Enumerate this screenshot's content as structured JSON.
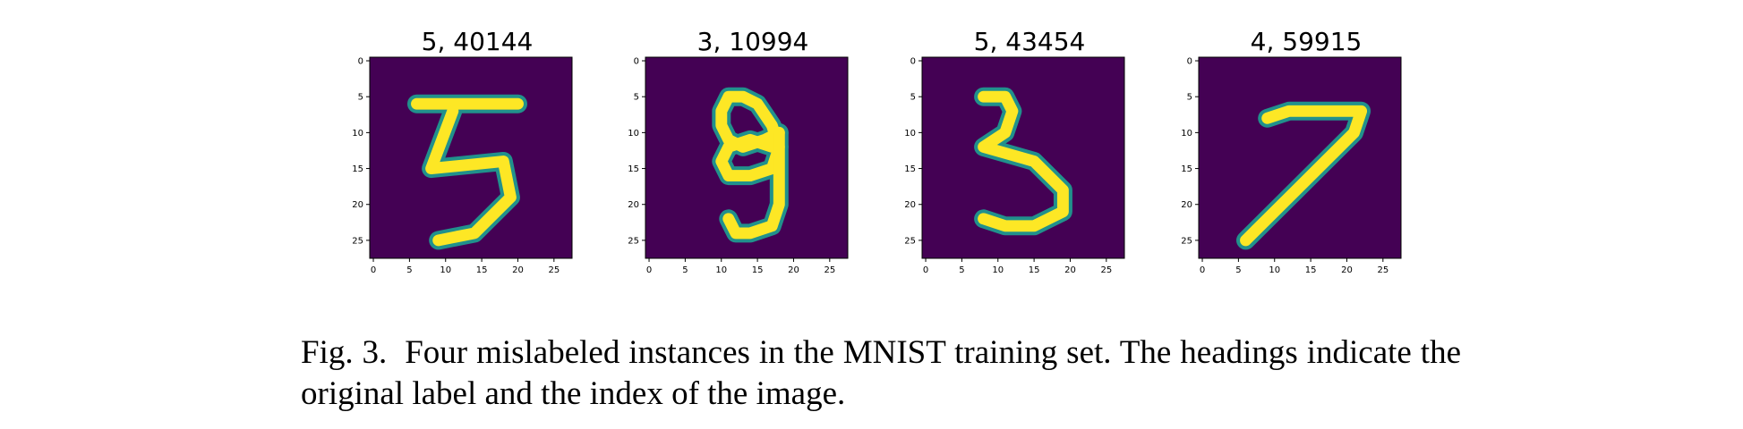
{
  "panels": [
    {
      "title": "5, 40144",
      "strokes": [
        [
          [
            6,
            6
          ],
          [
            20,
            6
          ]
        ],
        [
          [
            11,
            7
          ],
          [
            8,
            15
          ],
          [
            18,
            14
          ],
          [
            19,
            19
          ],
          [
            14,
            24
          ],
          [
            9,
            25
          ]
        ]
      ]
    },
    {
      "title": "3, 10994",
      "strokes": [
        [
          [
            17,
            12
          ],
          [
            14,
            11
          ],
          [
            11,
            12
          ],
          [
            10,
            14
          ],
          [
            11,
            16
          ],
          [
            14,
            16
          ],
          [
            17,
            15
          ],
          [
            18,
            12
          ],
          [
            17,
            9
          ],
          [
            15,
            6
          ],
          [
            13,
            5
          ],
          [
            11,
            5
          ],
          [
            10,
            7
          ],
          [
            10,
            9
          ],
          [
            11,
            11
          ],
          [
            13,
            12
          ],
          [
            16,
            11
          ],
          [
            18,
            10
          ]
        ],
        [
          [
            18,
            10
          ],
          [
            18,
            20
          ],
          [
            17,
            23
          ],
          [
            14,
            24
          ],
          [
            12,
            24
          ],
          [
            11,
            22
          ]
        ]
      ]
    },
    {
      "title": "5, 43454",
      "strokes": [
        [
          [
            8,
            5
          ],
          [
            11,
            5
          ],
          [
            12,
            7
          ],
          [
            11,
            10
          ],
          [
            8,
            12
          ],
          [
            15,
            14
          ],
          [
            19,
            18
          ],
          [
            19,
            21
          ],
          [
            15,
            23
          ],
          [
            11,
            23
          ],
          [
            8,
            22
          ]
        ]
      ]
    },
    {
      "title": "4, 59915",
      "strokes": [
        [
          [
            9,
            8
          ],
          [
            12,
            7
          ],
          [
            22,
            7
          ],
          [
            21,
            10
          ],
          [
            17,
            14
          ],
          [
            13,
            18
          ],
          [
            9,
            22
          ],
          [
            6,
            25
          ]
        ]
      ]
    }
  ],
  "axis": {
    "xticks": [
      "0",
      "5",
      "10",
      "15",
      "20",
      "25"
    ],
    "yticks": [
      "0",
      "5",
      "10",
      "15",
      "20",
      "25"
    ]
  },
  "caption": {
    "label": "Fig. 3.",
    "text": "Four mislabeled instances in the MNIST training set. The headings indicate the original label and the index of the image."
  },
  "colors": {
    "background": "#440154",
    "mid": "#21918c",
    "stroke": "#fde725"
  }
}
